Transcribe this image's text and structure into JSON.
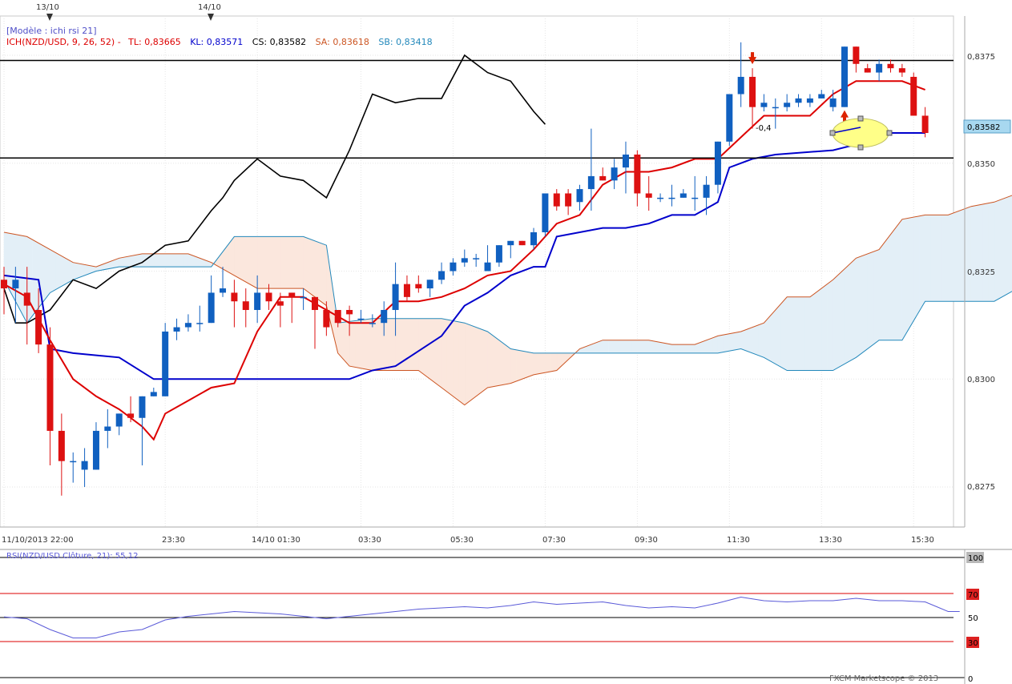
{
  "header": {
    "model": "[Modèle : ichi rsi 21]",
    "ich_prefix": "ICH(NZD/USD, 9, 26, 52) -",
    "tl": "TL: 0,83665",
    "kl": "KL: 0,83571",
    "cs": "CS: 0,83582",
    "sa": "SA: 0,83618",
    "sb": "SB: 0,83418"
  },
  "date_markers": [
    "13/10",
    "14/10"
  ],
  "time_labels": [
    "11/10/2013 22:00",
    "23:30",
    "14/10 01:30",
    "03:30",
    "05:30",
    "07:30",
    "09:30",
    "11:30",
    "13:30",
    "15:30"
  ],
  "price_labels": [
    "0,8375",
    "0,8350",
    "0,8325",
    "0,8300",
    "0,8275"
  ],
  "current_price": "0,83582",
  "annotation": "-0,4",
  "rsi": {
    "label": "RSI(NZD/USD.Clôture, 21): 55,12",
    "levels": [
      "100",
      "70",
      "50",
      "30",
      "0"
    ]
  },
  "footer": "FXCM Marketscope © 2013",
  "colors": {
    "bull": "#1060c0",
    "bear": "#dd1111",
    "tenkan": "#dd0000",
    "kijun": "#0000cc",
    "chikou": "#000000",
    "ssa": "#cc5522",
    "ssb": "#2288bb",
    "cloud_bull": "#e3eff7",
    "cloud_bear": "#fbe7dd",
    "rsi": "#5a5ad8"
  },
  "chart_data": {
    "type": "candlestick",
    "symbol": "NZD/USD",
    "ylim": [
      0.826,
      0.8386
    ],
    "candles": [
      [
        0.8323,
        0.8326,
        0.8315,
        0.8321
      ],
      [
        0.8321,
        0.8326,
        0.8313,
        0.8323
      ],
      [
        0.832,
        0.8326,
        0.8308,
        0.8317
      ],
      [
        0.8316,
        0.8321,
        0.8306,
        0.8308
      ],
      [
        0.8308,
        0.8312,
        0.828,
        0.8288
      ],
      [
        0.8288,
        0.8292,
        0.8273,
        0.8281
      ],
      [
        0.8281,
        0.8283,
        0.8276,
        0.8281
      ],
      [
        0.8279,
        0.8284,
        0.8275,
        0.8281
      ],
      [
        0.8279,
        0.829,
        0.8279,
        0.8288
      ],
      [
        0.8288,
        0.8293,
        0.8284,
        0.8289
      ],
      [
        0.8289,
        0.8292,
        0.8287,
        0.8292
      ],
      [
        0.8292,
        0.8296,
        0.829,
        0.8291
      ],
      [
        0.8291,
        0.8296,
        0.828,
        0.8296
      ],
      [
        0.8296,
        0.8298,
        0.8296,
        0.8297
      ],
      [
        0.8296,
        0.8313,
        0.8296,
        0.8311
      ],
      [
        0.8311,
        0.8314,
        0.8309,
        0.8312
      ],
      [
        0.8312,
        0.8315,
        0.8311,
        0.8313
      ],
      [
        0.8313,
        0.8317,
        0.8311,
        0.8313
      ],
      [
        0.8313,
        0.8324,
        0.8313,
        0.832
      ],
      [
        0.832,
        0.8326,
        0.8319,
        0.8321
      ],
      [
        0.832,
        0.8323,
        0.8312,
        0.8318
      ],
      [
        0.8318,
        0.8321,
        0.8312,
        0.8316
      ],
      [
        0.8316,
        0.8324,
        0.8313,
        0.832
      ],
      [
        0.832,
        0.8322,
        0.8316,
        0.8318
      ],
      [
        0.8318,
        0.832,
        0.8312,
        0.8317
      ],
      [
        0.832,
        0.832,
        0.8313,
        0.8319
      ],
      [
        0.8319,
        0.8321,
        0.8316,
        0.8319
      ],
      [
        0.8319,
        0.8319,
        0.8307,
        0.8316
      ],
      [
        0.8316,
        0.8318,
        0.831,
        0.8312
      ],
      [
        0.8316,
        0.8316,
        0.8312,
        0.8313
      ],
      [
        0.8316,
        0.8317,
        0.831,
        0.8315
      ],
      [
        0.8314,
        0.8316,
        0.8313,
        0.8314
      ],
      [
        0.8313,
        0.8315,
        0.8312,
        0.8313
      ],
      [
        0.8313,
        0.8318,
        0.831,
        0.8316
      ],
      [
        0.8316,
        0.8327,
        0.831,
        0.8322
      ],
      [
        0.8322,
        0.8324,
        0.8318,
        0.8319
      ],
      [
        0.8322,
        0.8324,
        0.832,
        0.8321
      ],
      [
        0.8321,
        0.8323,
        0.8319,
        0.8323
      ],
      [
        0.8323,
        0.8327,
        0.8322,
        0.8325
      ],
      [
        0.8325,
        0.8328,
        0.8324,
        0.8327
      ],
      [
        0.8327,
        0.833,
        0.8326,
        0.8328
      ],
      [
        0.8328,
        0.8329,
        0.8326,
        0.8328
      ],
      [
        0.8325,
        0.8331,
        0.8325,
        0.8327
      ],
      [
        0.8327,
        0.8331,
        0.8326,
        0.8331
      ],
      [
        0.8331,
        0.8332,
        0.8328,
        0.8332
      ],
      [
        0.8332,
        0.8332,
        0.8331,
        0.8331
      ],
      [
        0.8331,
        0.8335,
        0.833,
        0.8334
      ],
      [
        0.8334,
        0.8343,
        0.8333,
        0.8343
      ],
      [
        0.8343,
        0.8344,
        0.8339,
        0.834
      ],
      [
        0.8343,
        0.8344,
        0.8338,
        0.834
      ],
      [
        0.8341,
        0.8345,
        0.8339,
        0.8344
      ],
      [
        0.8344,
        0.8358,
        0.8339,
        0.8347
      ],
      [
        0.8347,
        0.8349,
        0.8346,
        0.8346
      ],
      [
        0.8346,
        0.8351,
        0.8344,
        0.8349
      ],
      [
        0.8349,
        0.8355,
        0.8343,
        0.8352
      ],
      [
        0.8352,
        0.8353,
        0.834,
        0.8343
      ],
      [
        0.8343,
        0.8347,
        0.8339,
        0.8342
      ],
      [
        0.8342,
        0.8343,
        0.8341,
        0.8342
      ],
      [
        0.8342,
        0.8345,
        0.834,
        0.8342
      ],
      [
        0.8342,
        0.8344,
        0.8342,
        0.8343
      ],
      [
        0.8342,
        0.8347,
        0.8339,
        0.8342
      ],
      [
        0.8342,
        0.8347,
        0.8338,
        0.8345
      ],
      [
        0.8345,
        0.8355,
        0.8343,
        0.8355
      ],
      [
        0.8355,
        0.8366,
        0.8354,
        0.8366
      ],
      [
        0.8366,
        0.8378,
        0.8363,
        0.837
      ],
      [
        0.837,
        0.8372,
        0.8358,
        0.8363
      ],
      [
        0.8363,
        0.8366,
        0.8362,
        0.8364
      ],
      [
        0.8363,
        0.8365,
        0.8358,
        0.8363
      ],
      [
        0.8363,
        0.8366,
        0.8362,
        0.8364
      ],
      [
        0.8364,
        0.8366,
        0.8363,
        0.8365
      ],
      [
        0.8364,
        0.8366,
        0.8363,
        0.8365
      ],
      [
        0.8365,
        0.8367,
        0.8365,
        0.8366
      ],
      [
        0.8363,
        0.8367,
        0.8362,
        0.8365
      ],
      [
        0.8363,
        0.8377,
        0.8363,
        0.8377
      ],
      [
        0.8377,
        0.8377,
        0.8371,
        0.8373
      ],
      [
        0.8372,
        0.8373,
        0.8371,
        0.8371
      ],
      [
        0.8371,
        0.8374,
        0.8369,
        0.8373
      ],
      [
        0.8373,
        0.8374,
        0.8371,
        0.8372
      ],
      [
        0.8372,
        0.8373,
        0.837,
        0.8371
      ],
      [
        0.837,
        0.8371,
        0.8361,
        0.8361
      ],
      [
        0.8361,
        0.8363,
        0.8356,
        0.8357
      ]
    ],
    "tenkan": [
      [
        0,
        0.8322
      ],
      [
        2,
        0.8319
      ],
      [
        4,
        0.8309
      ],
      [
        6,
        0.83
      ],
      [
        8,
        0.8296
      ],
      [
        10,
        0.8293
      ],
      [
        12,
        0.8289
      ],
      [
        13,
        0.8286
      ],
      [
        14,
        0.8292
      ],
      [
        16,
        0.8295
      ],
      [
        18,
        0.8298
      ],
      [
        20,
        0.8299
      ],
      [
        22,
        0.8311
      ],
      [
        24,
        0.8319
      ],
      [
        26,
        0.8319
      ],
      [
        28,
        0.8316
      ],
      [
        30,
        0.8313
      ],
      [
        32,
        0.8313
      ],
      [
        34,
        0.8318
      ],
      [
        36,
        0.8318
      ],
      [
        38,
        0.8319
      ],
      [
        40,
        0.8321
      ],
      [
        42,
        0.8324
      ],
      [
        44,
        0.8325
      ],
      [
        46,
        0.833
      ],
      [
        48,
        0.8336
      ],
      [
        50,
        0.8338
      ],
      [
        52,
        0.8345
      ],
      [
        54,
        0.8348
      ],
      [
        56,
        0.8348
      ],
      [
        58,
        0.8349
      ],
      [
        60,
        0.8351
      ],
      [
        62,
        0.8351
      ],
      [
        64,
        0.8356
      ],
      [
        66,
        0.8361
      ],
      [
        68,
        0.8361
      ],
      [
        70,
        0.8361
      ],
      [
        72,
        0.8366
      ],
      [
        74,
        0.8369
      ],
      [
        76,
        0.8369
      ],
      [
        78,
        0.8369
      ],
      [
        80,
        0.8367
      ]
    ],
    "kijun": [
      [
        0,
        0.8324
      ],
      [
        3,
        0.8323
      ],
      [
        4,
        0.8307
      ],
      [
        6,
        0.8306
      ],
      [
        10,
        0.8305
      ],
      [
        13,
        0.83
      ],
      [
        16,
        0.83
      ],
      [
        30,
        0.83
      ],
      [
        32,
        0.8302
      ],
      [
        34,
        0.8303
      ],
      [
        38,
        0.831
      ],
      [
        40,
        0.8317
      ],
      [
        42,
        0.832
      ],
      [
        44,
        0.8324
      ],
      [
        46,
        0.8326
      ],
      [
        47,
        0.8326
      ],
      [
        48,
        0.8333
      ],
      [
        52,
        0.8335
      ],
      [
        54,
        0.8335
      ],
      [
        56,
        0.8336
      ],
      [
        58,
        0.8338
      ],
      [
        60,
        0.8338
      ],
      [
        62,
        0.8341
      ],
      [
        63,
        0.8349
      ],
      [
        65,
        0.8351
      ],
      [
        67,
        0.8352
      ],
      [
        72,
        0.8353
      ],
      [
        75,
        0.8355
      ],
      [
        77,
        0.8357
      ],
      [
        80,
        0.8357
      ]
    ],
    "chikou": [
      [
        0,
        0.8321
      ],
      [
        1,
        0.8313
      ],
      [
        2,
        0.8313
      ],
      [
        4,
        0.8316
      ],
      [
        6,
        0.8323
      ],
      [
        8,
        0.8321
      ],
      [
        10,
        0.8325
      ],
      [
        12,
        0.8327
      ],
      [
        14,
        0.8331
      ],
      [
        16,
        0.8332
      ],
      [
        18,
        0.8339
      ],
      [
        19,
        0.8342
      ],
      [
        20,
        0.8346
      ],
      [
        22,
        0.8351
      ],
      [
        24,
        0.8347
      ],
      [
        26,
        0.8346
      ],
      [
        28,
        0.8342
      ],
      [
        30,
        0.8353
      ],
      [
        32,
        0.8366
      ],
      [
        34,
        0.8364
      ],
      [
        36,
        0.8365
      ],
      [
        38,
        0.8365
      ],
      [
        40,
        0.8375
      ],
      [
        42,
        0.8371
      ],
      [
        44,
        0.8369
      ],
      [
        46,
        0.8362
      ],
      [
        47,
        0.8359
      ]
    ],
    "ssa": [
      [
        0,
        0.8334
      ],
      [
        2,
        0.8333
      ],
      [
        4,
        0.833
      ],
      [
        6,
        0.8327
      ],
      [
        8,
        0.8326
      ],
      [
        10,
        0.8328
      ],
      [
        12,
        0.8329
      ],
      [
        14,
        0.8329
      ],
      [
        16,
        0.8329
      ],
      [
        18,
        0.8327
      ],
      [
        20,
        0.8324
      ],
      [
        22,
        0.8321
      ],
      [
        24,
        0.8321
      ],
      [
        26,
        0.8321
      ],
      [
        28,
        0.8317
      ],
      [
        29,
        0.8306
      ],
      [
        30,
        0.8303
      ],
      [
        32,
        0.8302
      ],
      [
        34,
        0.8302
      ],
      [
        36,
        0.8302
      ],
      [
        38,
        0.8298
      ],
      [
        40,
        0.8294
      ],
      [
        42,
        0.8298
      ],
      [
        44,
        0.8299
      ],
      [
        46,
        0.8301
      ],
      [
        48,
        0.8302
      ],
      [
        50,
        0.8307
      ],
      [
        52,
        0.8309
      ],
      [
        54,
        0.8309
      ],
      [
        56,
        0.8309
      ],
      [
        58,
        0.8308
      ],
      [
        60,
        0.8308
      ],
      [
        62,
        0.831
      ],
      [
        64,
        0.8311
      ],
      [
        66,
        0.8313
      ],
      [
        68,
        0.8319
      ],
      [
        70,
        0.8319
      ],
      [
        72,
        0.8323
      ],
      [
        74,
        0.8328
      ],
      [
        76,
        0.833
      ],
      [
        78,
        0.8337
      ],
      [
        80,
        0.8338
      ],
      [
        82,
        0.8338
      ],
      [
        84,
        0.834
      ],
      [
        86,
        0.8341
      ],
      [
        88,
        0.8343
      ]
    ],
    "ssb": [
      [
        0,
        0.8323
      ],
      [
        2,
        0.8313
      ],
      [
        4,
        0.832
      ],
      [
        6,
        0.8323
      ],
      [
        8,
        0.8325
      ],
      [
        10,
        0.8326
      ],
      [
        12,
        0.8326
      ],
      [
        14,
        0.8326
      ],
      [
        16,
        0.8326
      ],
      [
        18,
        0.8326
      ],
      [
        20,
        0.8333
      ],
      [
        22,
        0.8333
      ],
      [
        24,
        0.8333
      ],
      [
        26,
        0.8333
      ],
      [
        28,
        0.8331
      ],
      [
        29,
        0.8313
      ],
      [
        32,
        0.8314
      ],
      [
        34,
        0.8314
      ],
      [
        36,
        0.8314
      ],
      [
        38,
        0.8314
      ],
      [
        40,
        0.8313
      ],
      [
        42,
        0.8311
      ],
      [
        44,
        0.8307
      ],
      [
        46,
        0.8306
      ],
      [
        48,
        0.8306
      ],
      [
        50,
        0.8306
      ],
      [
        52,
        0.8306
      ],
      [
        54,
        0.8306
      ],
      [
        56,
        0.8306
      ],
      [
        58,
        0.8306
      ],
      [
        60,
        0.8306
      ],
      [
        62,
        0.8306
      ],
      [
        64,
        0.8307
      ],
      [
        66,
        0.8305
      ],
      [
        68,
        0.8302
      ],
      [
        70,
        0.8302
      ],
      [
        72,
        0.8302
      ],
      [
        74,
        0.8305
      ],
      [
        76,
        0.8309
      ],
      [
        78,
        0.8309
      ],
      [
        80,
        0.8318
      ],
      [
        82,
        0.8318
      ],
      [
        84,
        0.8318
      ],
      [
        86,
        0.8318
      ],
      [
        88,
        0.8321
      ]
    ],
    "horizontal_lines": [
      0.83738,
      0.83512
    ],
    "signals": [
      {
        "index": 65,
        "direction": "down"
      },
      {
        "index": 73,
        "direction": "up"
      }
    ],
    "rsi_values": [
      [
        0,
        50.5
      ],
      [
        2,
        49
      ],
      [
        4,
        40
      ],
      [
        6,
        33
      ],
      [
        8,
        33
      ],
      [
        10,
        38
      ],
      [
        12,
        40
      ],
      [
        14,
        48
      ],
      [
        16,
        51
      ],
      [
        18,
        53
      ],
      [
        20,
        55
      ],
      [
        22,
        54
      ],
      [
        24,
        53
      ],
      [
        26,
        51
      ],
      [
        28,
        49
      ],
      [
        30,
        51
      ],
      [
        32,
        53
      ],
      [
        34,
        55
      ],
      [
        36,
        57
      ],
      [
        38,
        58
      ],
      [
        40,
        59
      ],
      [
        42,
        58
      ],
      [
        44,
        60
      ],
      [
        46,
        63
      ],
      [
        48,
        61
      ],
      [
        50,
        62
      ],
      [
        52,
        63
      ],
      [
        54,
        60
      ],
      [
        56,
        58
      ],
      [
        58,
        59
      ],
      [
        60,
        58
      ],
      [
        62,
        62
      ],
      [
        64,
        67
      ],
      [
        66,
        64
      ],
      [
        68,
        63
      ],
      [
        70,
        64
      ],
      [
        72,
        64
      ],
      [
        74,
        66
      ],
      [
        76,
        64
      ],
      [
        78,
        64
      ],
      [
        80,
        63
      ],
      [
        81,
        59
      ],
      [
        82,
        55
      ],
      [
        83,
        55
      ]
    ]
  }
}
